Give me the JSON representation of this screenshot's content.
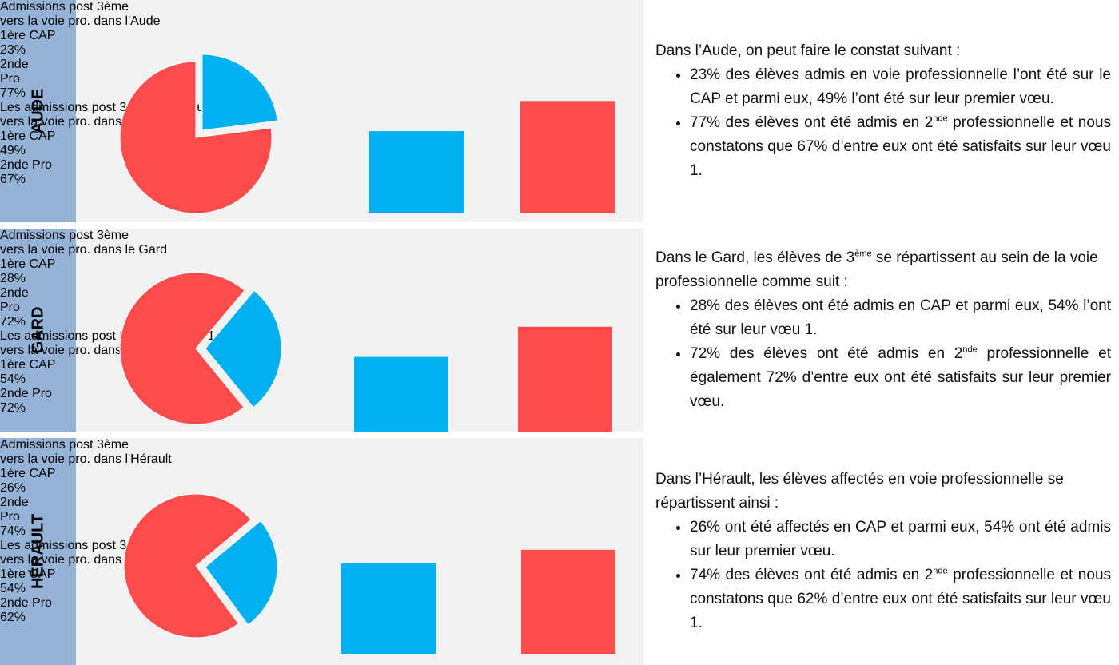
{
  "chart_data": [
    {
      "type": "pie",
      "title": [
        "Admissions post 3ème",
        "vers la voie pro. dans l'Aude"
      ],
      "categories": [
        "1ère CAP",
        "2nde Pro"
      ],
      "values": [
        23,
        77
      ],
      "value_labels": [
        "23%",
        "77%"
      ],
      "colors": [
        "#00b0f0",
        "#ff4b4b"
      ]
    },
    {
      "type": "bar",
      "title": [
        "Les admissions post 3ème sur voeu 1",
        "vers la voie pro. dans l'Aude"
      ],
      "categories": [
        "1ère CAP",
        "2nde Pro"
      ],
      "values": [
        49,
        67
      ],
      "value_labels": [
        "49%",
        "67%"
      ],
      "colors": [
        "#00b0f0",
        "#ff4b4b"
      ]
    },
    {
      "type": "pie",
      "title": [
        "Admissions post 3ème",
        "vers la voie pro. dans le Gard"
      ],
      "categories": [
        "1ère CAP",
        "2nde Pro"
      ],
      "values": [
        28,
        72
      ],
      "value_labels": [
        "28%",
        "72%"
      ],
      "colors": [
        "#00b0f0",
        "#ff4b4b"
      ]
    },
    {
      "type": "bar",
      "title": [
        "Les admissions post 3ème sur voeu 1",
        "vers la voie pro. dans le Gard"
      ],
      "categories": [
        "1ère CAP",
        "2nde Pro"
      ],
      "values": [
        54,
        72
      ],
      "value_labels": [
        "54%",
        "72%"
      ],
      "colors": [
        "#00b0f0",
        "#ff4b4b"
      ]
    },
    {
      "type": "pie",
      "title": [
        "Admissions post 3ème",
        "vers la voie pro. dans l'Hérault"
      ],
      "categories": [
        "1ère CAP",
        "2nde Pro"
      ],
      "values": [
        26,
        74
      ],
      "value_labels": [
        "26%",
        "74%"
      ],
      "colors": [
        "#00b0f0",
        "#ff4b4b"
      ]
    },
    {
      "type": "bar",
      "title": [
        "Les admissions post 3ème sur voeu 1",
        "vers la voie pro. dans l'Hérault"
      ],
      "categories": [
        "1ère CAP",
        "2nde Pro"
      ],
      "values": [
        54,
        62
      ],
      "value_labels": [
        "54%",
        "62%"
      ],
      "colors": [
        "#00b0f0",
        "#ff4b4b"
      ]
    }
  ],
  "rows": [
    {
      "label": "AUDE",
      "intro": [
        "Dans l’Aude, on peut faire le constat suivant :"
      ],
      "bullets": [
        [
          "23% des élèves admis en voie professionnelle l’ont été sur le CAP et parmi eux, 49% l’ont été sur leur premier vœu."
        ],
        [
          "77% des élèves ont été admis en 2",
          "nde",
          " professionnelle et nous constatons que 67% d’entre eux ont été satisfaits sur leur vœu 1."
        ]
      ]
    },
    {
      "label": "GARD",
      "intro": [
        "Dans le Gard, les élèves de 3",
        "ème",
        " se répartissent au sein de la voie professionnelle comme suit :"
      ],
      "bullets": [
        [
          "28% des élèves ont été admis en CAP et parmi eux, 54% l’ont été sur leur vœu 1."
        ],
        [
          "72% des élèves ont été admis en 2",
          "nde",
          " professionnelle et également 72% d’entre eux ont été satisfaits sur leur premier vœu."
        ]
      ]
    },
    {
      "label": "HÉRAULT",
      "intro": [
        "Dans l’Hérault, les élèves affectés en voie professionnelle se répartissent ainsi :"
      ],
      "bullets": [
        [
          "26% ont été affectés en CAP et parmi eux, 54% ont été admis sur leur premier vœu."
        ],
        [
          "74% des élèves ont été admis en 2",
          "nde",
          " professionnelle et nous constatons que 62% d’entre eux ont été satisfaits sur leur vœu 1."
        ]
      ]
    }
  ]
}
